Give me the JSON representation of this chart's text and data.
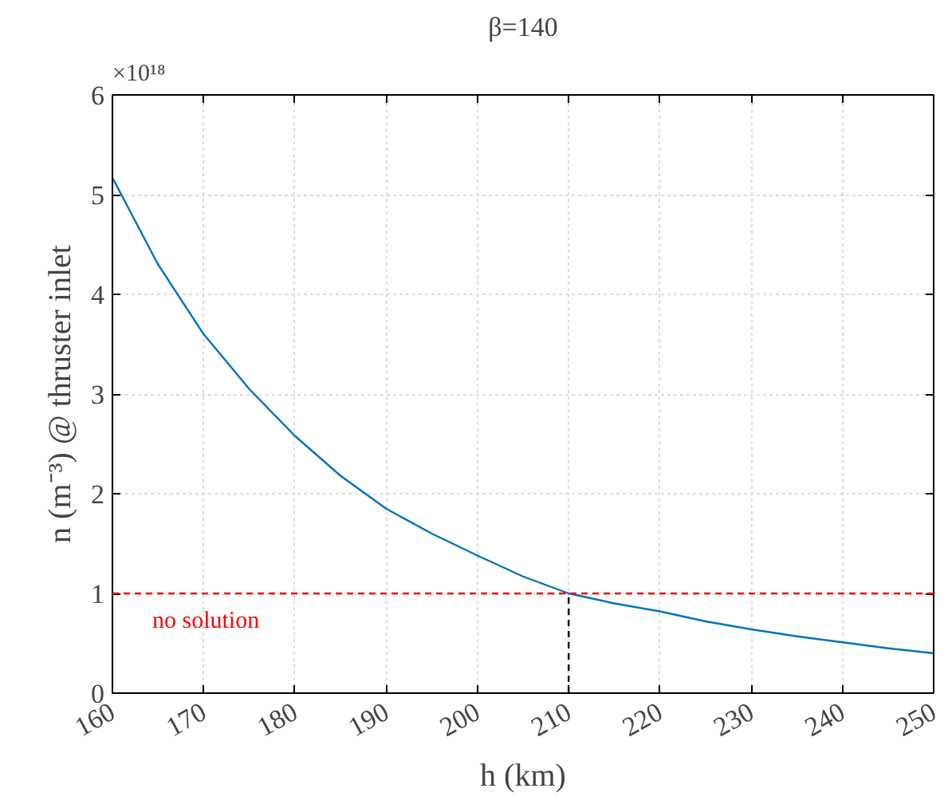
{
  "chart_data": {
    "type": "line",
    "title": "β=140",
    "xlabel": "h (km)",
    "ylabel": "n (m⁻³) @ thruster inlet",
    "x": [
      160,
      165,
      170,
      175,
      180,
      185,
      190,
      195,
      200,
      205,
      210,
      215,
      220,
      225,
      230,
      235,
      240,
      245,
      250
    ],
    "series": [
      {
        "color": "#0072bd",
        "values": [
          5.17,
          4.3,
          3.6,
          3.05,
          2.58,
          2.18,
          1.85,
          1.6,
          1.38,
          1.17,
          1.0,
          0.9,
          0.82,
          0.72,
          0.64,
          0.57,
          0.51,
          0.45,
          0.4
        ]
      },
      {
        "color": "#000000",
        "line_style": "dashed",
        "x": [
          210,
          210
        ],
        "values": [
          0,
          1.0
        ]
      }
    ],
    "ref_lines": [
      {
        "axis": "y",
        "value": 1,
        "color": "#ff0000",
        "line_style": "dashed"
      }
    ],
    "annotations": [
      "×10¹⁸",
      "no solution"
    ],
    "xlim": [
      160,
      250
    ],
    "ylim": [
      0,
      6
    ],
    "xticks": [
      160,
      170,
      180,
      190,
      200,
      210,
      220,
      230,
      240,
      250
    ],
    "yticks": [
      0,
      1,
      2,
      3,
      4,
      5,
      6
    ],
    "grid": true,
    "line_style": "solid",
    "marker": "none"
  }
}
